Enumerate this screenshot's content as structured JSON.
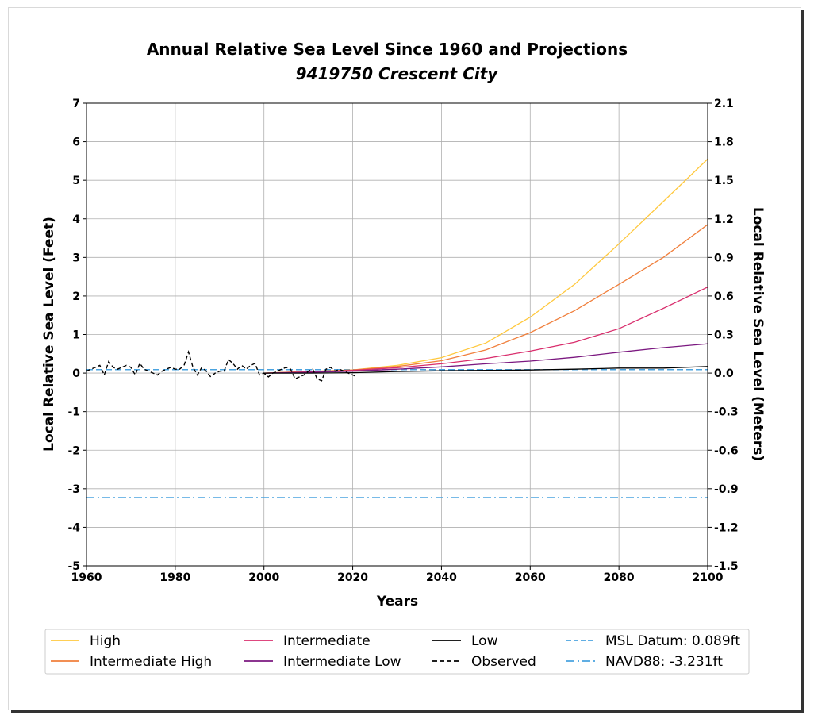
{
  "chart_data": {
    "type": "line",
    "title": "Annual Relative Sea Level Since 1960 and Projections",
    "subtitle": "9419750 Crescent City",
    "xlabel": "Years",
    "ylabel": "Local Relative Sea Level (Feet)",
    "ylabel_right": "Local Relative Sea Level (Meters)",
    "xlim": [
      1960,
      2100
    ],
    "ylim": [
      -5,
      7
    ],
    "ylim_right": [
      -1.5,
      2.1
    ],
    "xticks": [
      "1960",
      "1980",
      "2000",
      "2020",
      "2040",
      "2060",
      "2080",
      "2100"
    ],
    "yticks": [
      "-5",
      "-4",
      "-3",
      "-2",
      "-1",
      "0",
      "1",
      "2",
      "3",
      "4",
      "5",
      "6",
      "7"
    ],
    "yticks_right": [
      "-1.5",
      "-1.2",
      "-0.9",
      "-0.6",
      "-0.3",
      "0.0",
      "0.3",
      "0.6",
      "0.9",
      "1.2",
      "1.5",
      "1.8",
      "2.1"
    ],
    "grid": true,
    "legend_position": "bottom",
    "projection_x": [
      2000,
      2010,
      2020,
      2030,
      2040,
      2050,
      2060,
      2070,
      2080,
      2090,
      2100
    ],
    "series": [
      {
        "name": "High",
        "color": "#ffc83d",
        "style": "solid",
        "values": [
          0.0,
          0.04,
          0.08,
          0.2,
          0.4,
          0.78,
          1.45,
          2.3,
          3.35,
          4.45,
          5.55
        ]
      },
      {
        "name": "Intermediate High",
        "color": "#f07f3c",
        "style": "solid",
        "values": [
          0.0,
          0.04,
          0.08,
          0.17,
          0.32,
          0.6,
          1.05,
          1.62,
          2.3,
          3.0,
          3.85
        ]
      },
      {
        "name": "Intermediate",
        "color": "#d92e6d",
        "style": "solid",
        "values": [
          0.0,
          0.03,
          0.07,
          0.14,
          0.24,
          0.38,
          0.57,
          0.8,
          1.15,
          1.68,
          2.23
        ]
      },
      {
        "name": "Intermediate Low",
        "color": "#7b1880",
        "style": "solid",
        "values": [
          0.0,
          0.02,
          0.05,
          0.1,
          0.16,
          0.24,
          0.31,
          0.41,
          0.54,
          0.66,
          0.76
        ]
      },
      {
        "name": "Low",
        "color": "#000000",
        "style": "solid",
        "values": [
          0.0,
          0.0,
          0.01,
          0.04,
          0.06,
          0.07,
          0.08,
          0.1,
          0.13,
          0.13,
          0.17
        ]
      },
      {
        "name": "Observed",
        "color": "#000000",
        "style": "dashed",
        "x": [
          1960,
          1961,
          1962,
          1963,
          1964,
          1965,
          1966,
          1967,
          1968,
          1969,
          1970,
          1971,
          1972,
          1973,
          1974,
          1975,
          1976,
          1977,
          1978,
          1979,
          1980,
          1981,
          1982,
          1983,
          1984,
          1985,
          1986,
          1987,
          1988,
          1989,
          1990,
          1991,
          1992,
          1993,
          1994,
          1995,
          1996,
          1997,
          1998,
          1999,
          2000,
          2001,
          2002,
          2003,
          2004,
          2005,
          2006,
          2007,
          2008,
          2009,
          2010,
          2011,
          2012,
          2013,
          2014,
          2015,
          2016,
          2017,
          2018,
          2019,
          2020,
          2021
        ],
        "values": [
          0.05,
          0.1,
          0.15,
          0.2,
          -0.05,
          0.3,
          0.15,
          0.1,
          0.15,
          0.2,
          0.15,
          -0.05,
          0.25,
          0.1,
          0.05,
          0.0,
          -0.05,
          0.05,
          0.1,
          0.15,
          0.1,
          0.1,
          0.2,
          0.55,
          0.15,
          -0.05,
          0.15,
          0.05,
          -0.1,
          0.0,
          0.05,
          0.05,
          0.35,
          0.25,
          0.1,
          0.2,
          0.1,
          0.2,
          0.25,
          -0.05,
          0.0,
          -0.1,
          0.0,
          0.05,
          0.1,
          0.15,
          0.1,
          -0.15,
          -0.1,
          -0.05,
          0.05,
          0.1,
          -0.15,
          -0.2,
          0.1,
          0.15,
          0.05,
          0.1,
          0.05,
          0.0,
          -0.05,
          -0.1
        ]
      },
      {
        "name": "MSL Datum: 0.089ft",
        "color": "#4aa3df",
        "style": "dashed",
        "value": 0.089
      },
      {
        "name": "NAVD88: -3.231ft",
        "color": "#4aa3df",
        "style": "dashdot",
        "value": -3.231
      }
    ]
  }
}
